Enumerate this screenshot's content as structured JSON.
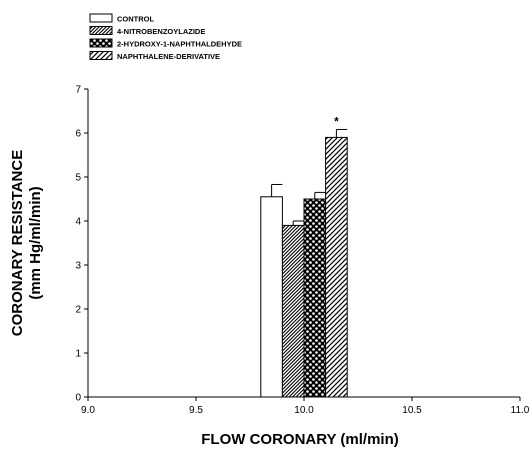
{
  "chart_data": {
    "type": "bar",
    "title": "",
    "xlabel": "FLOW CORONARY (ml/min)",
    "ylabel": "CORONARY RESISTANCE",
    "ylabel_line2": "(mm Hg/ml/min)",
    "xlim": [
      9.0,
      11.0
    ],
    "ylim": [
      0,
      7
    ],
    "x_ticks": [
      "9.0",
      "9.5",
      "10.0",
      "10.5",
      "11.0"
    ],
    "y_ticks": [
      "0",
      "1",
      "2",
      "3",
      "4",
      "5",
      "6",
      "7"
    ],
    "grid": false,
    "legend_position": "top-left",
    "series": [
      {
        "name": "CONTROL",
        "x": 9.85,
        "value": 4.55,
        "error": 0.28,
        "pattern": "none"
      },
      {
        "name": "4-NITROBENZOYLAZIDE",
        "x": 9.95,
        "value": 3.9,
        "error": 0.1,
        "pattern": "diag-dense"
      },
      {
        "name": "2-HYDROXY-1-NAPHTHALDEHYDE",
        "x": 10.05,
        "value": 4.5,
        "error": 0.15,
        "pattern": "dots"
      },
      {
        "name": "NAPHTHALENE-DERIVATIVE",
        "x": 10.15,
        "value": 5.9,
        "error": 0.18,
        "pattern": "diag"
      }
    ],
    "annotations": [
      {
        "text": "*",
        "series": "NAPHTHALENE-DERIVATIVE"
      }
    ]
  }
}
